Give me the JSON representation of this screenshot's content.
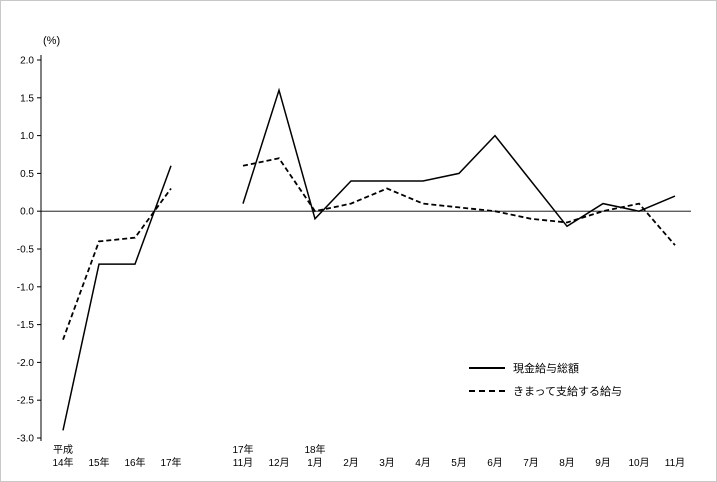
{
  "chart_data": {
    "type": "line",
    "title": "",
    "unit_label": "(%)",
    "xlabel": "",
    "ylabel": "(%)",
    "ylim": [
      -3.0,
      2.0
    ],
    "ytick_step": 0.5,
    "yticks": [
      "2.0",
      "1.5",
      "1.0",
      "0.5",
      "0.0",
      "-0.5",
      "-1.0",
      "-1.5",
      "-2.0",
      "-2.5",
      "-3.0"
    ],
    "grid": false,
    "line_color": "#000000",
    "legend_position": "lower-right-inside",
    "categories": [
      {
        "top": "平成",
        "bottom": "14年"
      },
      {
        "top": "",
        "bottom": "15年"
      },
      {
        "top": "",
        "bottom": "16年"
      },
      {
        "top": "",
        "bottom": "17年"
      },
      null,
      {
        "top": "17年",
        "bottom": "11月"
      },
      {
        "top": "",
        "bottom": "12月"
      },
      {
        "top": "18年",
        "bottom": "1月"
      },
      {
        "top": "",
        "bottom": "2月"
      },
      {
        "top": "",
        "bottom": "3月"
      },
      {
        "top": "",
        "bottom": "4月"
      },
      {
        "top": "",
        "bottom": "5月"
      },
      {
        "top": "",
        "bottom": "6月"
      },
      {
        "top": "",
        "bottom": "7月"
      },
      {
        "top": "",
        "bottom": "8月"
      },
      {
        "top": "",
        "bottom": "9月"
      },
      {
        "top": "",
        "bottom": "10月"
      },
      {
        "top": "",
        "bottom": "11月"
      }
    ],
    "series": [
      {
        "name": "現金給与総額",
        "line_style": "solid",
        "values": [
          -2.9,
          -0.7,
          -0.7,
          0.6,
          null,
          0.1,
          1.6,
          -0.1,
          0.4,
          0.4,
          0.4,
          0.5,
          1.0,
          0.4,
          -0.2,
          0.1,
          0.0,
          0.2
        ]
      },
      {
        "name": "きまって支給する給与",
        "line_style": "dashed",
        "values": [
          -1.7,
          -0.4,
          -0.35,
          0.3,
          null,
          0.6,
          0.7,
          0.0,
          0.1,
          0.3,
          0.1,
          0.05,
          0.0,
          -0.1,
          -0.15,
          0.0,
          0.1,
          -0.45
        ]
      }
    ]
  }
}
